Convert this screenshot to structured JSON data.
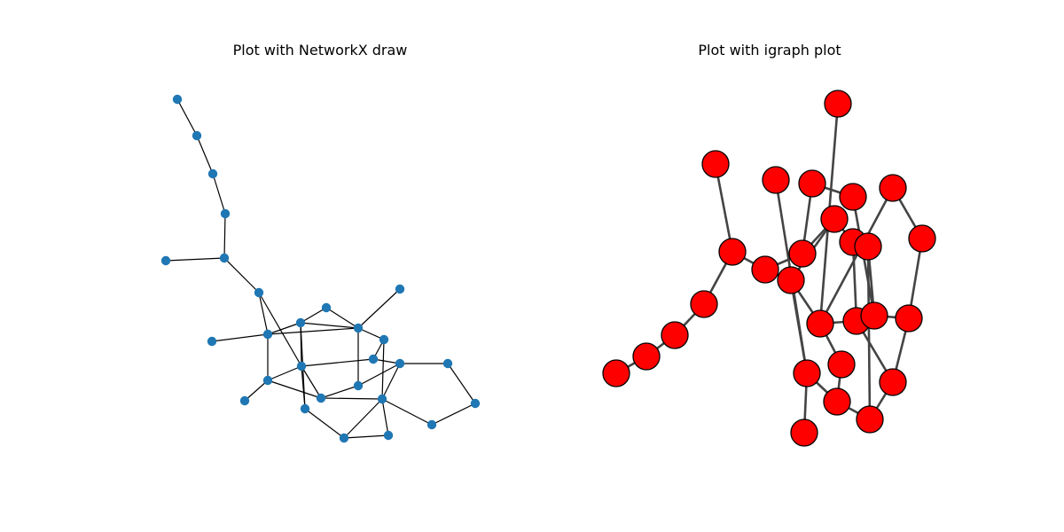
{
  "figure": {
    "left_title": "Plot with NetworkX draw",
    "right_title": "Plot with igraph plot"
  },
  "colors": {
    "networkx_node": "#1f77b4",
    "networkx_edge": "#000000",
    "igraph_node": "#ff0000",
    "igraph_node_border": "#000000",
    "igraph_edge": "#444444"
  }
}
